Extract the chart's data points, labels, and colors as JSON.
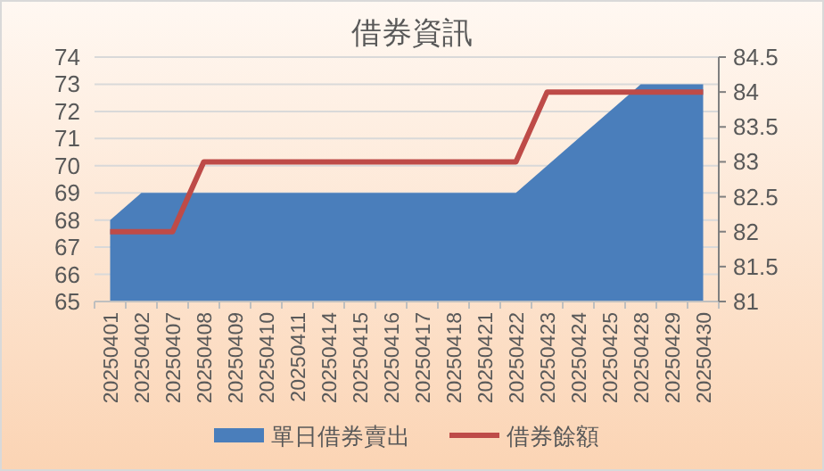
{
  "chart_data": {
    "type": "area",
    "title": "借券資訊",
    "categories": [
      "20250401",
      "20250402",
      "20250407",
      "20250408",
      "20250409",
      "20250410",
      "20250411",
      "20250414",
      "20250415",
      "20250416",
      "20250417",
      "20250418",
      "20250421",
      "20250422",
      "20250423",
      "20250424",
      "20250425",
      "20250428",
      "20250429",
      "20250430"
    ],
    "series": [
      {
        "name": "單日借券賣出",
        "color": "#4a7ebb",
        "values": [
          68,
          69,
          69,
          69,
          69,
          69,
          69,
          69,
          69,
          69,
          69,
          69,
          69,
          69,
          70,
          71,
          72,
          73,
          73,
          73
        ]
      },
      {
        "name": "借券餘額",
        "type": "line",
        "axis": "y2",
        "color": "#be4b48",
        "values": [
          82,
          82,
          82,
          83,
          83,
          83,
          83,
          83,
          83,
          83,
          83,
          83,
          83,
          83,
          84,
          84,
          84,
          84,
          84,
          84
        ]
      }
    ],
    "ylim": [
      65,
      74
    ],
    "yticks": [
      65,
      66,
      67,
      68,
      69,
      70,
      71,
      72,
      73,
      74
    ],
    "y2lim": [
      81,
      84.5
    ],
    "y2ticks": [
      81,
      81.5,
      82,
      82.5,
      83,
      83.5,
      84,
      84.5
    ],
    "grid": "y",
    "legend": "bottom",
    "marker": "none",
    "line_style": "solid"
  }
}
